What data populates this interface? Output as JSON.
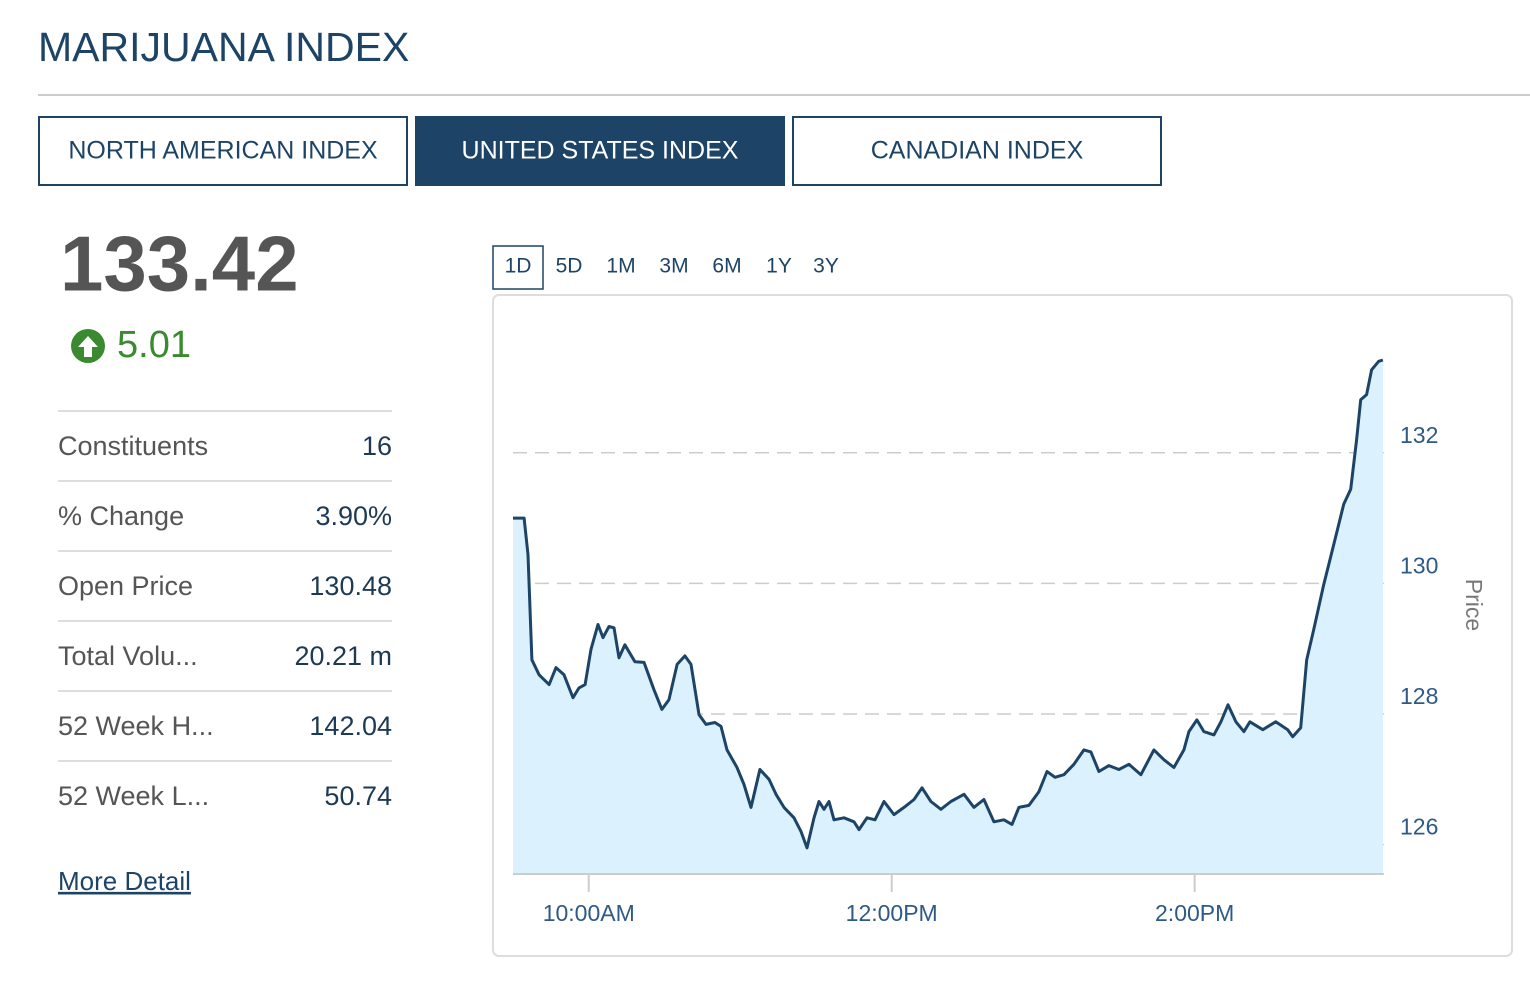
{
  "header": {
    "title": "MARIJUANA INDEX"
  },
  "tabs": [
    {
      "label": "NORTH AMERICAN INDEX",
      "active": false
    },
    {
      "label": "UNITED STATES INDEX",
      "active": true
    },
    {
      "label": "CANADIAN INDEX",
      "active": false
    }
  ],
  "quote": {
    "price": "133.42",
    "change": "5.01"
  },
  "stats": [
    {
      "label": "Constituents",
      "value": "16"
    },
    {
      "label": "% Change",
      "value": "3.90%"
    },
    {
      "label": "Open Price",
      "value": "130.48"
    },
    {
      "label": "Total Volu...",
      "value": "20.21 m"
    },
    {
      "label": "52 Week H...",
      "value": "142.04"
    },
    {
      "label": "52 Week L...",
      "value": "50.74"
    }
  ],
  "more_detail": "More Detail",
  "ranges": {
    "options": [
      "1D",
      "5D",
      "1M",
      "3M",
      "6M",
      "1Y",
      "3Y"
    ],
    "selected": 0
  },
  "chart_data": {
    "type": "area",
    "y_label": "Price",
    "color": "#1d4466",
    "fill": "#dbf1fd",
    "grid": true,
    "y_axis_side": "right",
    "x": [
      9.5,
      9.573,
      9.599,
      9.625,
      9.672,
      9.738,
      9.784,
      9.837,
      9.896,
      9.936,
      9.976,
      10.015,
      10.061,
      10.094,
      10.134,
      10.167,
      10.2,
      10.239,
      10.305,
      10.365,
      10.431,
      10.483,
      10.53,
      10.583,
      10.635,
      10.675,
      10.728,
      10.774,
      10.833,
      10.873,
      10.913,
      10.979,
      11.025,
      11.071,
      11.13,
      11.19,
      11.236,
      11.289,
      11.355,
      11.401,
      11.441,
      11.487,
      11.52,
      11.553,
      11.586,
      11.619,
      11.685,
      11.751,
      11.784,
      11.837,
      11.89,
      11.949,
      12.015,
      12.081,
      12.147,
      12.2,
      12.259,
      12.325,
      12.391,
      12.477,
      12.543,
      12.609,
      12.675,
      12.741,
      12.794,
      12.84,
      12.906,
      12.972,
      13.025,
      13.078,
      13.137,
      13.203,
      13.269,
      13.315,
      13.368,
      13.434,
      13.5,
      13.566,
      13.645,
      13.731,
      13.797,
      13.863,
      13.929,
      13.962,
      14.015,
      14.061,
      14.127,
      14.173,
      14.22,
      14.272,
      14.325,
      14.365,
      14.45,
      14.535,
      14.614,
      14.647,
      14.7,
      14.74,
      14.786,
      14.852,
      14.918,
      14.984,
      15.03,
      15.069,
      15.096,
      15.135,
      15.168,
      15.215,
      15.243
    ],
    "values": [
      131.0,
      131.0,
      130.44,
      128.83,
      128.6,
      128.45,
      128.71,
      128.6,
      128.25,
      128.4,
      128.45,
      128.99,
      129.37,
      129.17,
      129.34,
      129.32,
      128.86,
      129.06,
      128.8,
      128.79,
      128.37,
      128.07,
      128.22,
      128.76,
      128.89,
      128.76,
      127.99,
      127.84,
      127.87,
      127.81,
      127.45,
      127.18,
      126.92,
      126.57,
      127.15,
      127.0,
      126.77,
      126.57,
      126.41,
      126.2,
      125.95,
      126.41,
      126.66,
      126.54,
      126.66,
      126.38,
      126.41,
      126.35,
      126.23,
      126.41,
      126.38,
      126.66,
      126.46,
      126.57,
      126.69,
      126.87,
      126.66,
      126.54,
      126.66,
      126.77,
      126.57,
      126.69,
      126.35,
      126.38,
      126.31,
      126.57,
      126.6,
      126.81,
      127.12,
      127.03,
      127.07,
      127.23,
      127.45,
      127.42,
      127.12,
      127.21,
      127.15,
      127.23,
      127.07,
      127.45,
      127.3,
      127.18,
      127.45,
      127.73,
      127.91,
      127.73,
      127.68,
      127.88,
      128.14,
      127.88,
      127.73,
      127.88,
      127.76,
      127.88,
      127.76,
      127.65,
      127.79,
      128.83,
      129.29,
      129.98,
      130.59,
      131.21,
      131.44,
      132.2,
      132.81,
      132.89,
      133.27,
      133.4,
      133.42
    ],
    "xlim": [
      9.5,
      15.25
    ],
    "xticks": [
      {
        "value": 10,
        "label": "10:00AM"
      },
      {
        "value": 12,
        "label": "12:00PM"
      },
      {
        "value": 14,
        "label": "2:00PM"
      }
    ],
    "ylim": [
      125.55,
      134.4
    ],
    "yticks": [
      126,
      128,
      130,
      132
    ]
  }
}
